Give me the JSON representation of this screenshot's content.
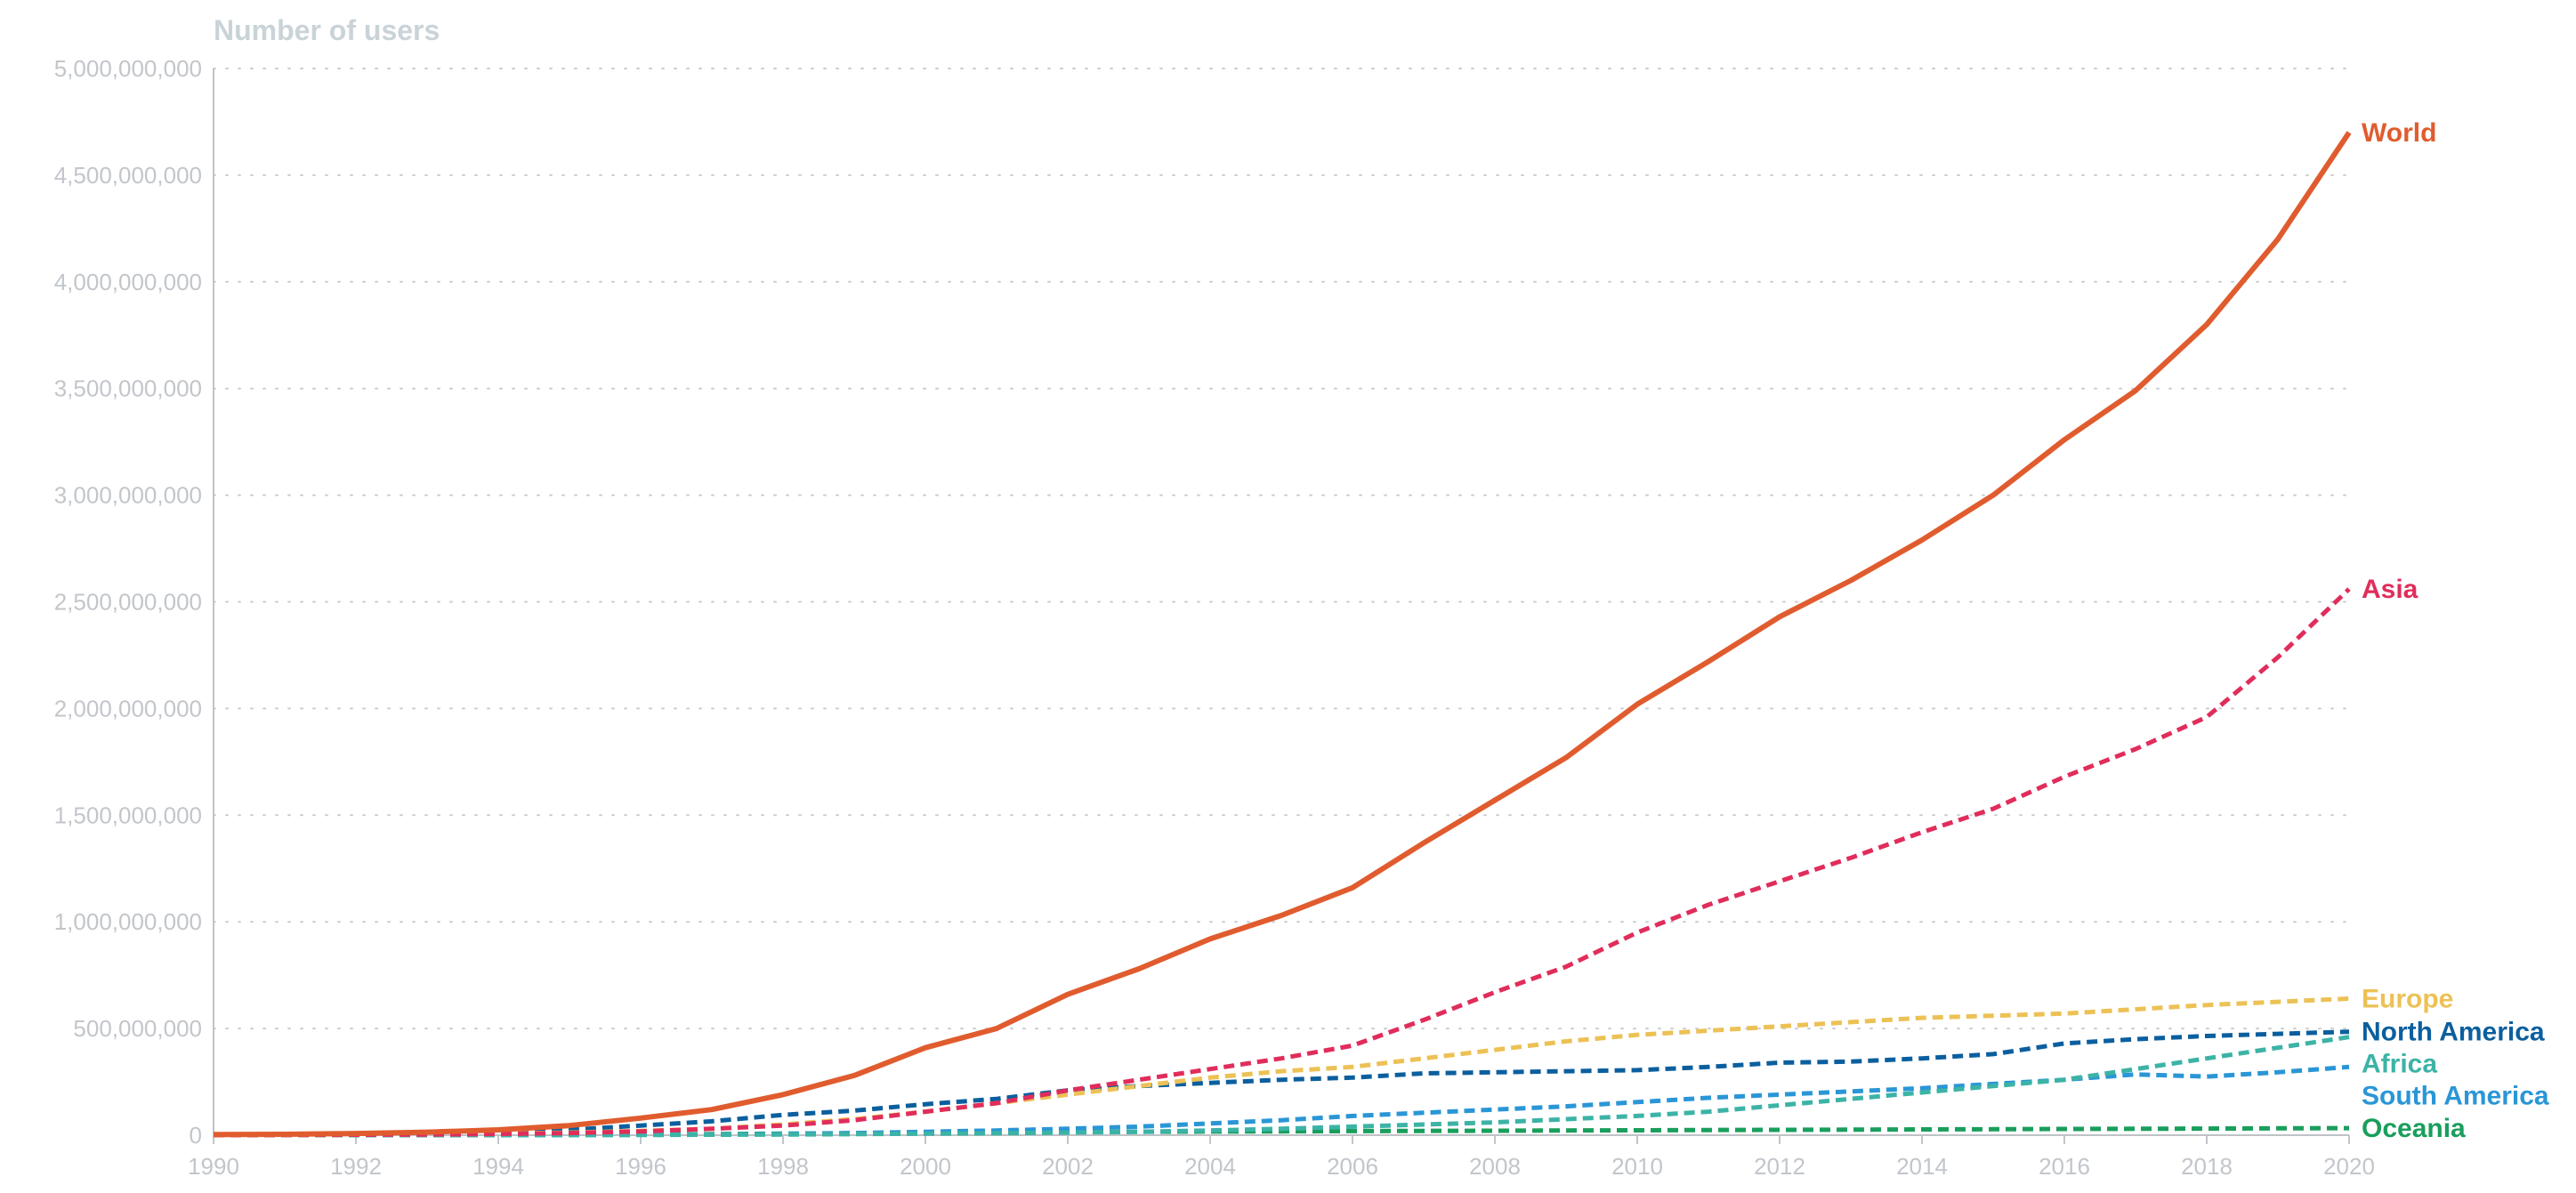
{
  "chart_data": {
    "type": "line",
    "ylabel": "Number of users",
    "xlim": [
      1990,
      2020
    ],
    "ylim": [
      0,
      5000000000
    ],
    "y_ticks": [
      "0",
      "500,000,000",
      "1,000,000,000",
      "1,500,000,000",
      "2,000,000,000",
      "2,500,000,000",
      "3,000,000,000",
      "3,500,000,000",
      "4,000,000,000",
      "4,500,000,000",
      "5,000,000,000"
    ],
    "x_ticks": [
      "1990",
      "1992",
      "1994",
      "1996",
      "1998",
      "2000",
      "2002",
      "2004",
      "2006",
      "2008",
      "2010",
      "2012",
      "2014",
      "2016",
      "2018",
      "2020"
    ],
    "grid": "horizontal dotted",
    "legend": "end-of-line labels",
    "x": [
      1990,
      1991,
      1992,
      1993,
      1994,
      1995,
      1996,
      1997,
      1998,
      1999,
      2000,
      2001,
      2002,
      2003,
      2004,
      2005,
      2006,
      2007,
      2008,
      2009,
      2010,
      2011,
      2012,
      2013,
      2014,
      2015,
      2016,
      2017,
      2018,
      2019,
      2020
    ],
    "series": [
      {
        "name": "World",
        "color": "#e05c2e",
        "style": "solid",
        "values": [
          3000000,
          4000000,
          8000000,
          14000000,
          25000000,
          45000000,
          80000000,
          120000000,
          190000000,
          280000000,
          410000000,
          500000000,
          660000000,
          780000000,
          920000000,
          1030000000,
          1160000000,
          1370000000,
          1570000000,
          1770000000,
          2020000000,
          2220000000,
          2430000000,
          2600000000,
          2790000000,
          3000000000,
          3260000000,
          3490000000,
          3800000000,
          4200000000,
          4700000000
        ]
      },
      {
        "name": "Asia",
        "color": "#e02d5b",
        "style": "dashed",
        "values": [
          500000,
          1000000,
          2000000,
          3000000,
          6000000,
          10000000,
          18000000,
          30000000,
          45000000,
          70000000,
          110000000,
          150000000,
          210000000,
          260000000,
          310000000,
          360000000,
          420000000,
          540000000,
          670000000,
          790000000,
          950000000,
          1080000000,
          1190000000,
          1300000000,
          1420000000,
          1530000000,
          1680000000,
          1810000000,
          1960000000,
          2240000000,
          2560000000
        ]
      },
      {
        "name": "Europe",
        "color": "#ecc155",
        "style": "dashed",
        "values": [
          500000,
          1000000,
          2000000,
          4000000,
          7000000,
          12000000,
          20000000,
          30000000,
          50000000,
          75000000,
          110000000,
          150000000,
          190000000,
          230000000,
          270000000,
          300000000,
          320000000,
          360000000,
          400000000,
          440000000,
          470000000,
          490000000,
          510000000,
          530000000,
          550000000,
          560000000,
          570000000,
          590000000,
          610000000,
          625000000,
          640000000
        ]
      },
      {
        "name": "North America",
        "color": "#0b5f9e",
        "style": "dashed",
        "values": [
          2000000,
          3000000,
          5000000,
          8000000,
          14000000,
          25000000,
          45000000,
          65000000,
          95000000,
          115000000,
          145000000,
          170000000,
          210000000,
          230000000,
          245000000,
          260000000,
          270000000,
          290000000,
          295000000,
          300000000,
          305000000,
          320000000,
          340000000,
          345000000,
          360000000,
          380000000,
          430000000,
          450000000,
          465000000,
          475000000,
          485000000
        ]
      },
      {
        "name": "Africa",
        "color": "#3cb3a6",
        "style": "dashed",
        "values": [
          0,
          0,
          0,
          100000,
          200000,
          500000,
          1000000,
          2000000,
          3000000,
          5000000,
          7000000,
          9000000,
          12000000,
          16000000,
          22000000,
          30000000,
          40000000,
          50000000,
          60000000,
          75000000,
          90000000,
          110000000,
          140000000,
          170000000,
          200000000,
          230000000,
          260000000,
          310000000,
          360000000,
          410000000,
          460000000
        ]
      },
      {
        "name": "South America",
        "color": "#2a96d6",
        "style": "dashed",
        "values": [
          0,
          0,
          100000,
          300000,
          600000,
          1000000,
          2000000,
          3500000,
          6000000,
          10000000,
          16000000,
          22000000,
          30000000,
          40000000,
          55000000,
          70000000,
          90000000,
          105000000,
          120000000,
          135000000,
          155000000,
          175000000,
          190000000,
          205000000,
          220000000,
          240000000,
          260000000,
          285000000,
          275000000,
          295000000,
          320000000
        ]
      },
      {
        "name": "Oceania",
        "color": "#1a9e5c",
        "style": "dashed",
        "values": [
          100000,
          200000,
          400000,
          700000,
          1000000,
          2000000,
          3000000,
          5000000,
          7000000,
          9000000,
          11000000,
          13000000,
          15000000,
          16000000,
          17000000,
          18000000,
          19000000,
          20000000,
          21000000,
          22000000,
          23000000,
          24000000,
          25000000,
          26000000,
          27000000,
          28000000,
          29000000,
          30000000,
          31000000,
          32000000,
          33000000
        ]
      }
    ]
  }
}
